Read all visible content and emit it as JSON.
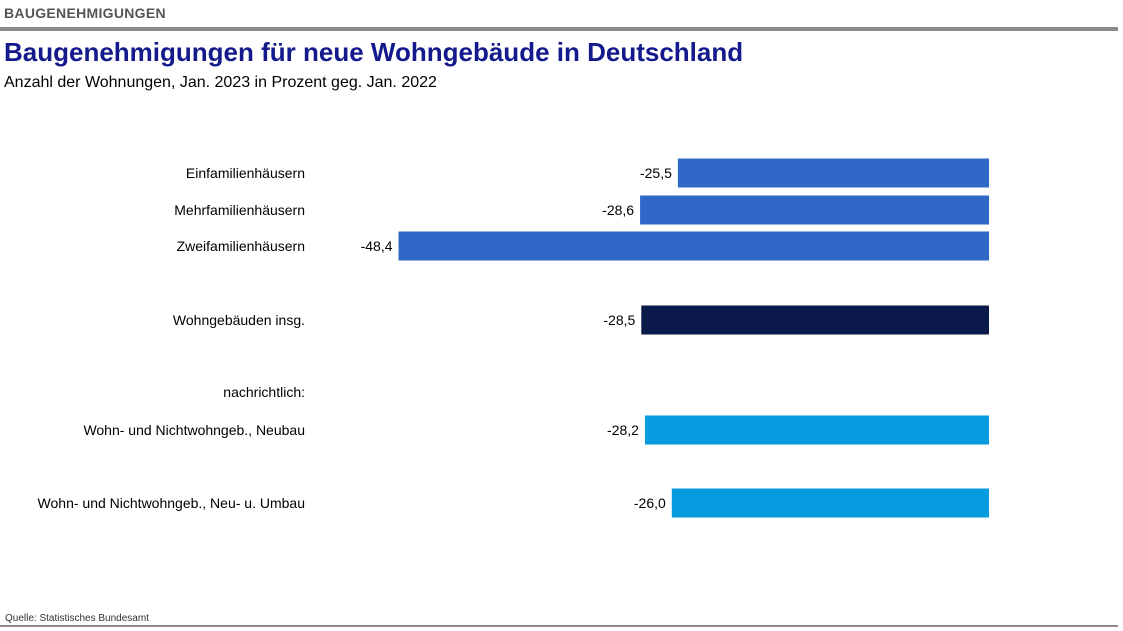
{
  "header": {
    "kicker": "BAUGENEHMIGUNGEN",
    "title": "Baugenehmigungen für neue Wohngebäude in Deutschland",
    "subtitle": "Anzahl der Wohnungen, Jan. 2023 in Prozent geg. Jan. 2022"
  },
  "footer": {
    "source": "Quelle: Statistisches Bundesamt"
  },
  "colors": {
    "title": "#141a8c",
    "bar_blue": "#2f68c6",
    "bar_navy": "#0b1a4a",
    "bar_cyan": "#069adf"
  },
  "chart_data": {
    "type": "bar",
    "orientation": "horizontal",
    "xlim": [
      -50,
      0
    ],
    "grid": false,
    "categories": [
      "Einfamilienhäusern",
      "Mehrfamilienhäusern",
      "Zweifamilienhäusern",
      "Wohngebäuden insg.",
      "nachrichtlich:",
      "Wohn- und Nichtwohngeb., Neubau",
      "Wohn- und Nichtwohngeb., Neu- u. Umbau"
    ],
    "values": [
      -25.5,
      -28.6,
      -48.4,
      -28.5,
      null,
      -28.2,
      -26.0
    ],
    "value_labels": [
      "-25,5",
      "-28,6",
      "-48,4",
      "-28,5",
      "",
      "-28,2",
      "-26,0"
    ],
    "bar_colors": [
      "#2f68c6",
      "#2f68c6",
      "#2f68c6",
      "#0b1a4a",
      null,
      "#069adf",
      "#069adf"
    ]
  }
}
